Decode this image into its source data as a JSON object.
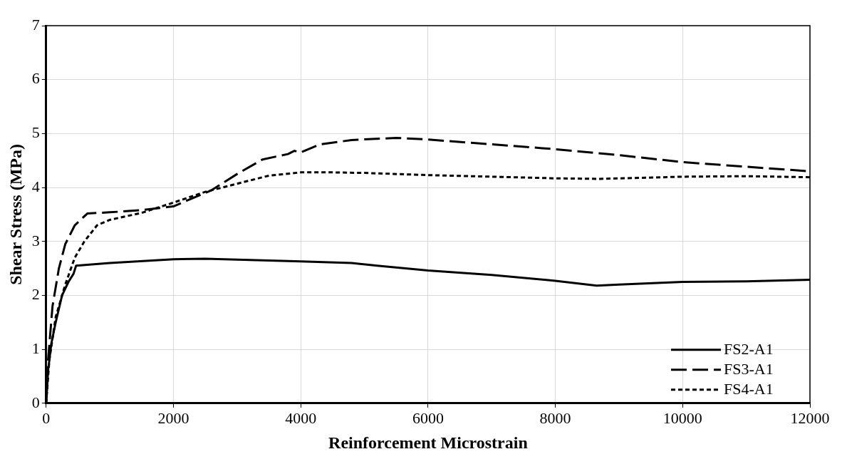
{
  "chart_data": {
    "type": "line",
    "xlabel": "Reinforcement Microstrain",
    "ylabel": "Shear Stress (MPa)",
    "xlim": [
      0,
      12000
    ],
    "xticks": [
      0,
      2000,
      4000,
      6000,
      8000,
      10000,
      12000
    ],
    "ylim": [
      0,
      7
    ],
    "yticks": [
      0,
      1,
      2,
      3,
      4,
      5,
      6,
      7
    ],
    "grid": true,
    "legend": "bottom right",
    "marker": "none",
    "series": [
      {
        "name": "FS2-A1",
        "color": "#000000",
        "line_style": "solid",
        "x": [
          0,
          30,
          80,
          150,
          250,
          350,
          430,
          470,
          1000,
          2000,
          2500,
          4000,
          4800,
          5200,
          6000,
          7000,
          8000,
          8650,
          9000,
          10000,
          11000,
          12000
        ],
        "values": [
          0,
          0.6,
          1.1,
          1.5,
          2.0,
          2.25,
          2.4,
          2.55,
          2.6,
          2.67,
          2.68,
          2.63,
          2.6,
          2.55,
          2.46,
          2.38,
          2.27,
          2.18,
          2.2,
          2.25,
          2.26,
          2.29
        ]
      },
      {
        "name": "FS3-A1",
        "color": "#000000",
        "line_style": "dashed",
        "x": [
          0,
          30,
          100,
          200,
          300,
          450,
          650,
          1000,
          1500,
          2000,
          2200,
          2600,
          3000,
          3400,
          3800,
          3900,
          4000,
          4300,
          4800,
          5500,
          6000,
          8000,
          9000,
          10000,
          12000
        ],
        "values": [
          0,
          0.8,
          1.8,
          2.5,
          2.95,
          3.3,
          3.52,
          3.54,
          3.58,
          3.65,
          3.75,
          3.95,
          4.25,
          4.52,
          4.62,
          4.68,
          4.65,
          4.8,
          4.88,
          4.92,
          4.89,
          4.71,
          4.6,
          4.47,
          4.3
        ]
      },
      {
        "name": "FS4-A1",
        "color": "#000000",
        "line_style": "dotted",
        "x": [
          0,
          50,
          150,
          300,
          450,
          600,
          800,
          1000,
          1500,
          2000,
          2500,
          3000,
          3500,
          4000,
          4500,
          5000,
          6000,
          7000,
          8000,
          8700,
          10000,
          11000,
          12000
        ],
        "values": [
          0,
          0.8,
          1.6,
          2.2,
          2.7,
          3.0,
          3.3,
          3.4,
          3.53,
          3.72,
          3.92,
          4.07,
          4.22,
          4.28,
          4.28,
          4.27,
          4.23,
          4.2,
          4.17,
          4.16,
          4.2,
          4.21,
          4.19
        ]
      }
    ]
  }
}
